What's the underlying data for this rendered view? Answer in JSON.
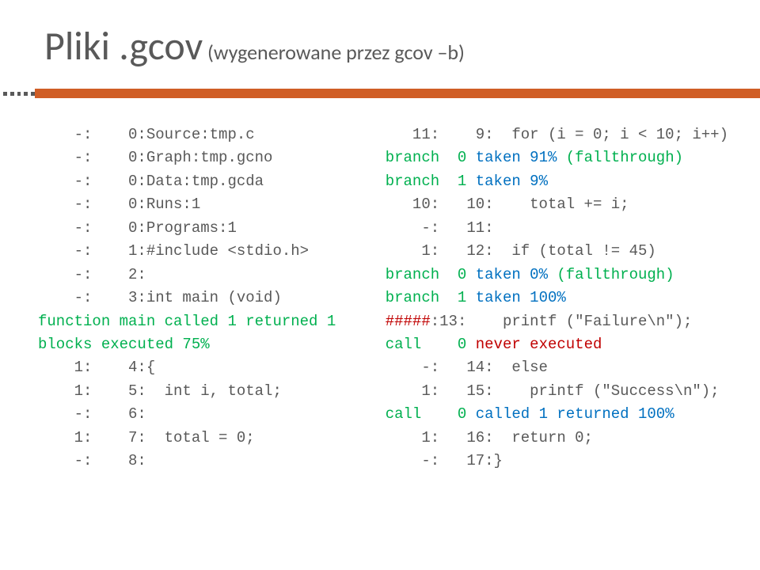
{
  "title": {
    "main": "Pliki .gcov",
    "sub": " (wygenerowane przez gcov –b)",
    "main_color": "#595959",
    "sub_color": "#595959",
    "main_fontsize": 50,
    "sub_fontsize": 26
  },
  "bar": {
    "color": "#d05e26",
    "dot_color": "#595959"
  },
  "code": {
    "font_family": "Courier New",
    "font_size": 19,
    "default_color": "#595959",
    "green": "#00b04f",
    "red": "#c00000",
    "blue": "#0070c0"
  },
  "left": {
    "l1": "    -:    0:Source:tmp.c",
    "l2": "    -:    0:Graph:tmp.gcno",
    "l3": "    -:    0:Data:tmp.gcda",
    "l4": "    -:    0:Runs:1",
    "l5": "    -:    0:Programs:1",
    "l6": "    -:    1:#include <stdio.h>",
    "l7": "    -:    2:",
    "l8": "    -:    3:int main (void)",
    "l9a": "function main called 1 returned 1",
    "l9b": "blocks executed 75%",
    "l10": "    1:    4:{",
    "l11": "    1:    5:  int i, total;",
    "l12": "    -:    6:",
    "l13": "    1:    7:  total = 0;",
    "l14": "    -:    8:"
  },
  "right": {
    "l1": "   11:    9:  for (i = 0; i < 10; i++)",
    "l2a": "branch  0 ",
    "l2b": "taken 91%",
    "l2c": " (fallthrough)",
    "l3a": "branch  1 ",
    "l3b": "taken 9%",
    "l4": "   10:   10:    total += i;",
    "l5": "    -:   11:",
    "l6": "    1:   12:  if (total != 45)",
    "l7a": "branch  0 ",
    "l7b": "taken 0%",
    "l7c": " (fallthrough)",
    "l8a": "branch  1 ",
    "l8b": "taken 100%",
    "l9a": "#####",
    "l9b": ":13:    printf (\"Failure\\n\");",
    "l10a": "call    0 ",
    "l10b": "never executed",
    "l11": "    -:   14:  else",
    "l12": "    1:   15:    printf (\"Success\\n\");",
    "l13a": "call    0 ",
    "l13b": "called 1 returned 100%",
    "l14": "    1:   16:  return 0;",
    "l15": "    -:   17:}"
  }
}
